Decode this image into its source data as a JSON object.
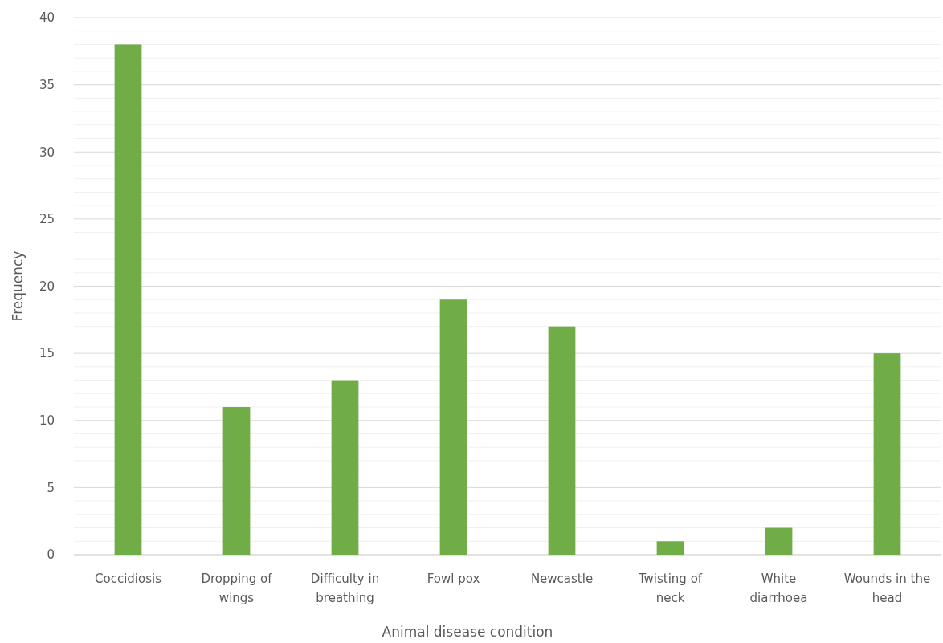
{
  "chart_data": {
    "type": "bar",
    "xlabel": "Animal disease condition",
    "ylabel": "Frequency",
    "categories": [
      "Coccidiosis",
      "Dropping of wings",
      "Difficulty in breathing",
      "Fowl pox",
      "Newcastle",
      "Twisting of neck",
      "White diarrhoea",
      "Wounds in the head"
    ],
    "values": [
      38,
      11,
      13,
      19,
      17,
      1,
      2,
      15
    ],
    "color": "#70ad47",
    "ylim": [
      0,
      40
    ],
    "yticks": [
      0,
      {
        "value": 1,
        "label": null
      },
      {
        "value": 2,
        "label": null
      },
      {
        "value": 3,
        "label": null
      },
      {
        "value": 4,
        "label": null
      },
      5,
      {
        "value": 6,
        "label": null
      },
      {
        "value": 7,
        "label": null
      },
      {
        "value": 8,
        "label": null
      },
      {
        "value": 9,
        "label": null
      },
      10,
      {
        "value": 11,
        "label": null
      },
      {
        "value": 12,
        "label": null
      },
      {
        "value": 13,
        "label": null
      },
      {
        "value": 14,
        "label": null
      },
      15,
      {
        "value": 16,
        "label": null
      },
      {
        "value": 17,
        "label": null
      },
      {
        "value": 18,
        "label": null
      },
      {
        "value": 19,
        "label": null
      },
      20,
      {
        "value": 21,
        "label": null
      },
      {
        "value": 22,
        "label": null
      },
      {
        "value": 23,
        "label": null
      },
      {
        "value": 24,
        "label": null
      },
      25,
      {
        "value": 26,
        "label": null
      },
      {
        "value": 27,
        "label": null
      },
      {
        "value": 28,
        "label": null
      },
      {
        "value": 29,
        "label": null
      },
      30,
      {
        "value": 31,
        "label": null
      },
      {
        "value": 32,
        "label": null
      },
      {
        "value": 33,
        "label": null
      },
      {
        "value": 34,
        "label": null
      },
      35,
      {
        "value": 36,
        "label": null
      },
      {
        "value": 37,
        "label": null
      },
      {
        "value": 38,
        "label": null
      },
      {
        "value": 39,
        "label": null
      },
      40
    ],
    "grid": "y"
  }
}
